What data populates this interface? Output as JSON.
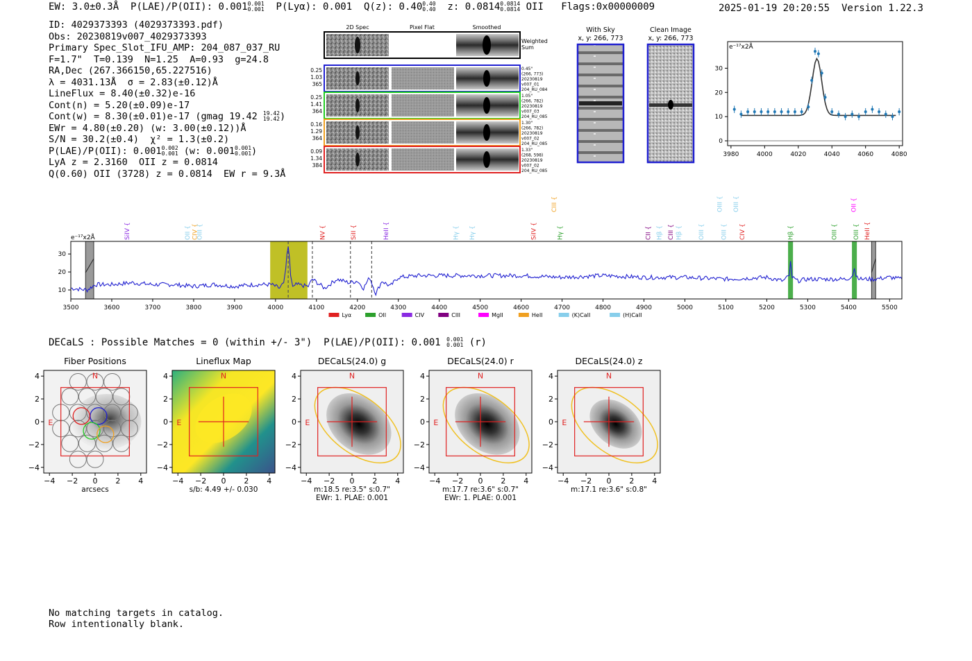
{
  "header": {
    "ew": "EW: 3.0±0.3Å",
    "plae_label": "P(LAE)/P(OII): 0.001",
    "plae_up": "0.001",
    "plae_lo": "0.001",
    "plya": "P(Lyα): 0.001",
    "qz_label": "Q(z): 0.40",
    "qz_up": "0.40",
    "qz_lo": "0.40",
    "z_label": "z: 0.0814",
    "z_up": "0.0814",
    "z_lo": "0.0814",
    "z_line": "OII",
    "flags": "Flags:0x00000009",
    "timestamp": "2025-01-19 20:20:55",
    "version": "Version 1.22.3"
  },
  "info": {
    "id": "ID: 4029373393 (4029373393.pdf)",
    "obs": "Obs: 20230819v007_4029373393",
    "primary": "Primary Spec_Slot_IFU_AMP: 204_087_037_RU",
    "f_line": "F=1.7\"  T=0.139  N=1.25  A=0.93  g=24.8",
    "radec": "RA,Dec (267.366150,65.227516)",
    "lambda": "λ = 4031.13Å  σ = 2.83(±0.12)Å",
    "lineflux": "LineFlux = 8.40(±0.32)e-16",
    "contn": "Cont(n) = 5.20(±0.09)e-17",
    "contw": "Cont(w) = 8.30(±0.01)e-17 (gmag 19.42",
    "contw_up": "19.42",
    "contw_lo": "19.42",
    "ewr": "EWr = 4.80(±0.20) (w: 3.00(±0.12))Å",
    "sn": "S/N = 30.2(±0.4)  χ² = 1.3(±0.2)",
    "plae2": "P(LAE)/P(OII): 0.001",
    "plae2_up": "0.002",
    "plae2_lo": "0.001",
    "plae2_w": "(w: 0.001",
    "plae2_w_up": "0.001",
    "plae2_w_lo": "0.001",
    "lya": "LyA z = 2.3160  OII z = 0.0814",
    "q": "Q(0.60) OII (3728) z = 0.0814  EW r = 9.3Å"
  },
  "cutouts": {
    "headers": [
      "2D Spec",
      "Pixel Flat",
      "Smoothed"
    ],
    "weighted_sum": "Weighted Sum",
    "rows": [
      {
        "left": [
          "0.25",
          "1.03",
          "365"
        ],
        "right": [
          "0.45\"",
          "(266, 773)",
          "20230819",
          "v007_01",
          "204_RU_084"
        ],
        "color": "#1f1fd0"
      },
      {
        "left": [
          "0.25",
          "1.41",
          "364"
        ],
        "right": [
          "1.05\"",
          "(266, 782)",
          "20230819",
          "v007_03",
          "204_RU_085"
        ],
        "color": "#22cc22"
      },
      {
        "left": [
          "0.16",
          "1.29",
          "364"
        ],
        "right": [
          "1.30\"",
          "(266, 782)",
          "20230819",
          "v007_02",
          "204_RU_085"
        ],
        "color": "#f0a020"
      },
      {
        "left": [
          "0.09",
          "1.34",
          "384"
        ],
        "right": [
          "1.33\"",
          "(268, 598)",
          "20230819",
          "v007_02",
          "204_RU_085"
        ],
        "color": "#e02020"
      }
    ]
  },
  "sky": {
    "with_sky_title": "With Sky",
    "with_sky_xy": "x, y: 266, 773",
    "clean_title": "Clean Image",
    "clean_xy": "x, y: 266, 773"
  },
  "zoom_chart": {
    "unit": "e⁻¹⁷x2Å",
    "x": [
      3982,
      3986,
      3990,
      3994,
      3998,
      4002,
      4006,
      4010,
      4014,
      4018,
      4022,
      4026,
      4028,
      4030,
      4032,
      4034,
      4036,
      4040,
      4044,
      4048,
      4052,
      4056,
      4060,
      4064,
      4068,
      4072,
      4076,
      4080
    ],
    "y": [
      13,
      11,
      12,
      12,
      12,
      12,
      12,
      12,
      12,
      12,
      12,
      14,
      25,
      37,
      36,
      28,
      18,
      12,
      11,
      10,
      11,
      10,
      12,
      13,
      12,
      11,
      10,
      12
    ],
    "xlim": [
      3978,
      4082
    ],
    "ylim": [
      -2,
      41
    ],
    "xticks": [
      3980,
      4000,
      4020,
      4040,
      4060,
      4080
    ],
    "yticks": [
      0,
      10,
      20,
      30
    ]
  },
  "chart_data": {
    "type": "line",
    "title": "",
    "xlabel": "",
    "ylabel": "e⁻¹⁷x2Å",
    "xlim": [
      3500,
      5530
    ],
    "ylim": [
      5,
      37
    ],
    "xticks": [
      3500,
      3600,
      3700,
      3800,
      3900,
      4000,
      4100,
      4200,
      4300,
      4400,
      4500,
      4600,
      4700,
      4800,
      4900,
      5000,
      5100,
      5200,
      5300,
      5400,
      5500
    ],
    "yticks": [
      10,
      20,
      30
    ],
    "series": [
      {
        "name": "spectrum",
        "x": [
          3500,
          3540,
          3560,
          3600,
          3650,
          3700,
          3750,
          3800,
          3850,
          3900,
          3950,
          3990,
          4010,
          4020,
          4025,
          4028,
          4031,
          4034,
          4037,
          4042,
          4050,
          4080,
          4090,
          4120,
          4150,
          4180,
          4200,
          4215,
          4230,
          4245,
          4260,
          4280,
          4300,
          4350,
          4400,
          4450,
          4500,
          4600,
          4700,
          4800,
          4900,
          5000,
          5100,
          5200,
          5240,
          5255,
          5258,
          5262,
          5275,
          5300,
          5350,
          5395,
          5410,
          5414,
          5418,
          5430,
          5460,
          5500,
          5530
        ],
        "y": [
          11,
          10,
          13,
          13,
          14,
          13,
          13,
          12,
          13,
          12,
          13,
          13,
          11,
          14,
          22,
          30,
          34,
          28,
          18,
          12,
          13,
          12,
          16,
          11,
          16,
          14,
          15,
          11,
          17,
          8,
          15,
          12,
          17,
          18,
          18,
          18,
          18,
          18,
          17,
          18,
          17,
          17,
          16,
          17,
          15,
          18,
          26,
          17,
          15,
          16,
          16,
          16,
          18,
          22,
          18,
          16,
          16,
          17,
          16
        ]
      }
    ],
    "top_lines": [
      {
        "label": "SiIV",
        "w": 3637,
        "row": 1,
        "color": "#8a2be2"
      },
      {
        "label": "OII",
        "w": 3785,
        "row": 1,
        "color": "#87ceeb"
      },
      {
        "label": "CIV",
        "w": 3803,
        "row": 1,
        "color": "#f0a020"
      },
      {
        "label": "OIII",
        "w": 3815,
        "row": 1,
        "color": "#87ceeb"
      },
      {
        "label": "NV",
        "w": 4115,
        "row": 1,
        "color": "#e02020"
      },
      {
        "label": "SiII",
        "w": 4190,
        "row": 1,
        "color": "#e02020"
      },
      {
        "label": "HeII",
        "w": 4270,
        "row": 1,
        "color": "#8a2be2"
      },
      {
        "label": "Hγ",
        "w": 4440,
        "row": 1,
        "color": "#87ceeb"
      },
      {
        "label": "Hγ",
        "w": 4480,
        "row": 1,
        "color": "#87ceeb"
      },
      {
        "label": "SiIV",
        "w": 4630,
        "row": 1,
        "color": "#e02020"
      },
      {
        "label": "CIII",
        "w": 4680,
        "row": 0,
        "color": "#f0a020"
      },
      {
        "label": "Hγ",
        "w": 4695,
        "row": 1,
        "color": "#2ca02c"
      },
      {
        "label": "CII",
        "w": 4910,
        "row": 1,
        "color": "#800080"
      },
      {
        "label": "Hβ",
        "w": 4937,
        "row": 1,
        "color": "#87ceeb"
      },
      {
        "label": "CIII",
        "w": 4965,
        "row": 1,
        "color": "#800080"
      },
      {
        "label": "Hβ",
        "w": 4985,
        "row": 1,
        "color": "#87ceeb"
      },
      {
        "label": "OIII",
        "w": 5040,
        "row": 1,
        "color": "#87ceeb"
      },
      {
        "label": "OIII",
        "w": 5085,
        "row": 0,
        "color": "#87ceeb"
      },
      {
        "label": "OIII",
        "w": 5095,
        "row": 1,
        "color": "#87ceeb"
      },
      {
        "label": "OIII",
        "w": 5125,
        "row": 0,
        "color": "#87ceeb"
      },
      {
        "label": "CIV",
        "w": 5140,
        "row": 1,
        "color": "#e02020"
      },
      {
        "label": "Hβ",
        "w": 5258,
        "row": 1,
        "color": "#2ca02c"
      },
      {
        "label": "OIII",
        "w": 5365,
        "row": 1,
        "color": "#2ca02c"
      },
      {
        "label": "OII",
        "w": 5412,
        "row": 0,
        "color": "#ff00ff"
      },
      {
        "label": "OIII",
        "w": 5418,
        "row": 1,
        "color": "#2ca02c"
      },
      {
        "label": "HeII",
        "w": 5445,
        "row": 1,
        "color": "#e02020"
      }
    ],
    "dashed_lines": [
      4031,
      4090,
      4183,
      4235
    ],
    "bands": [
      {
        "x0": 3987,
        "x1": 4078,
        "color": "#b5b500"
      },
      {
        "x0": 5252,
        "x1": 5264,
        "color": "#2ca02c"
      },
      {
        "x0": 5408,
        "x1": 5420,
        "color": "#2ca02c"
      }
    ],
    "gray_bars": [
      {
        "x0": 3536,
        "x1": 3556
      },
      {
        "x0": 5456,
        "x1": 5466
      }
    ],
    "legend": [
      {
        "label": "Lyα",
        "color": "#e02020"
      },
      {
        "label": "OII",
        "color": "#2ca02c"
      },
      {
        "label": "CIV",
        "color": "#8a2be2"
      },
      {
        "label": "CIII",
        "color": "#800080"
      },
      {
        "label": "MgII",
        "color": "#ff00ff"
      },
      {
        "label": "HeII",
        "color": "#f0a020"
      },
      {
        "label": "(K)CaII",
        "color": "#87ceeb"
      },
      {
        "label": "(H)CaII",
        "color": "#87ceeb"
      }
    ]
  },
  "decals": {
    "line_label": "DECaLS : Possible Matches = 0 (within +/- 3\")  P(LAE)/P(OII): 0.001",
    "line_up": "0.001",
    "line_lo": "0.001",
    "line_band": "(r)",
    "panels": [
      {
        "title": "Fiber Positions",
        "cap1": "arcsecs",
        "cap2": ""
      },
      {
        "title": "Lineflux Map",
        "cap1": "s/b: 4.49 +/- 0.030",
        "cap2": ""
      },
      {
        "title": "DECaLS(24.0) g",
        "cap1": "m:18.5  re:3.5\"  s:0.7\"",
        "cap2": "EWr: 1. PLAE: 0.001"
      },
      {
        "title": "DECaLS(24.0) r",
        "cap1": "m:17.7  re:3.6\"  s:0.7\"",
        "cap2": "EWr: 1. PLAE: 0.001"
      },
      {
        "title": "DECaLS(24.0) z",
        "cap1": "m:17.1  re:3.6\"  s:0.8\"",
        "cap2": ""
      }
    ],
    "axis_ticks": [
      "−4",
      "−2",
      "0",
      "2",
      "4"
    ],
    "north": "N",
    "east": "E"
  },
  "footer": {
    "line1": "No matching targets in catalog.",
    "line2": "Row intentionally blank."
  }
}
